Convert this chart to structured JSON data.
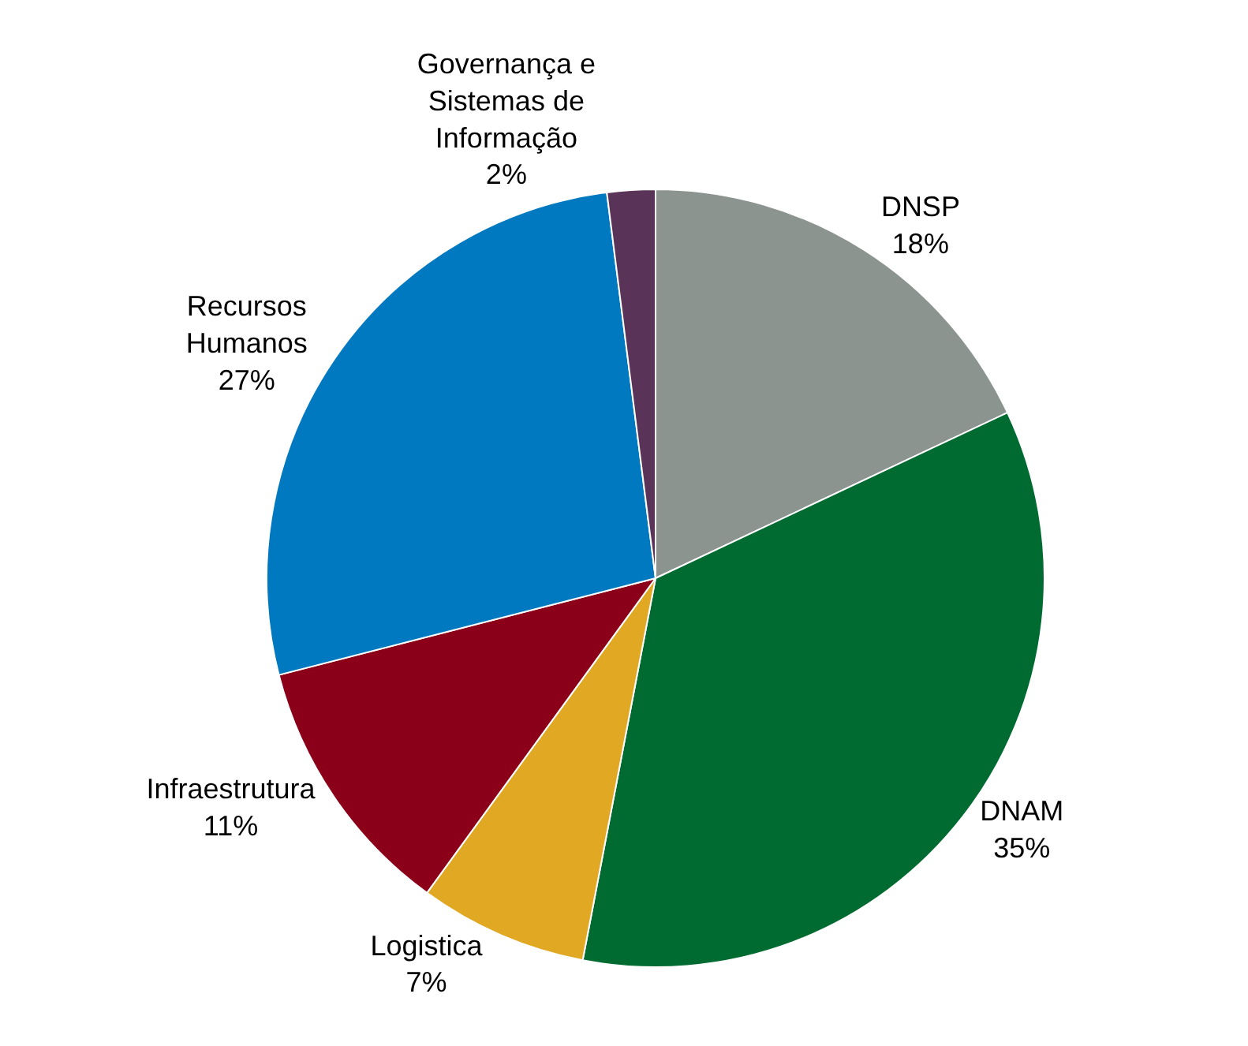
{
  "chart_data": {
    "type": "pie",
    "categories": [
      "DNSP",
      "DNAM",
      "Logistica",
      "Infraestrutura",
      "Recursos Humanos",
      "Governança e Sistemas de Informação"
    ],
    "values": [
      18,
      35,
      7,
      11,
      27,
      2
    ],
    "value_labels": [
      "18%",
      "35%",
      "7%",
      "11%",
      "27%",
      "2%"
    ],
    "colors": [
      "#8c9490",
      "#006b31",
      "#e0a823",
      "#8b0018",
      "#0079c1",
      "#5a3458"
    ],
    "legend": false
  }
}
